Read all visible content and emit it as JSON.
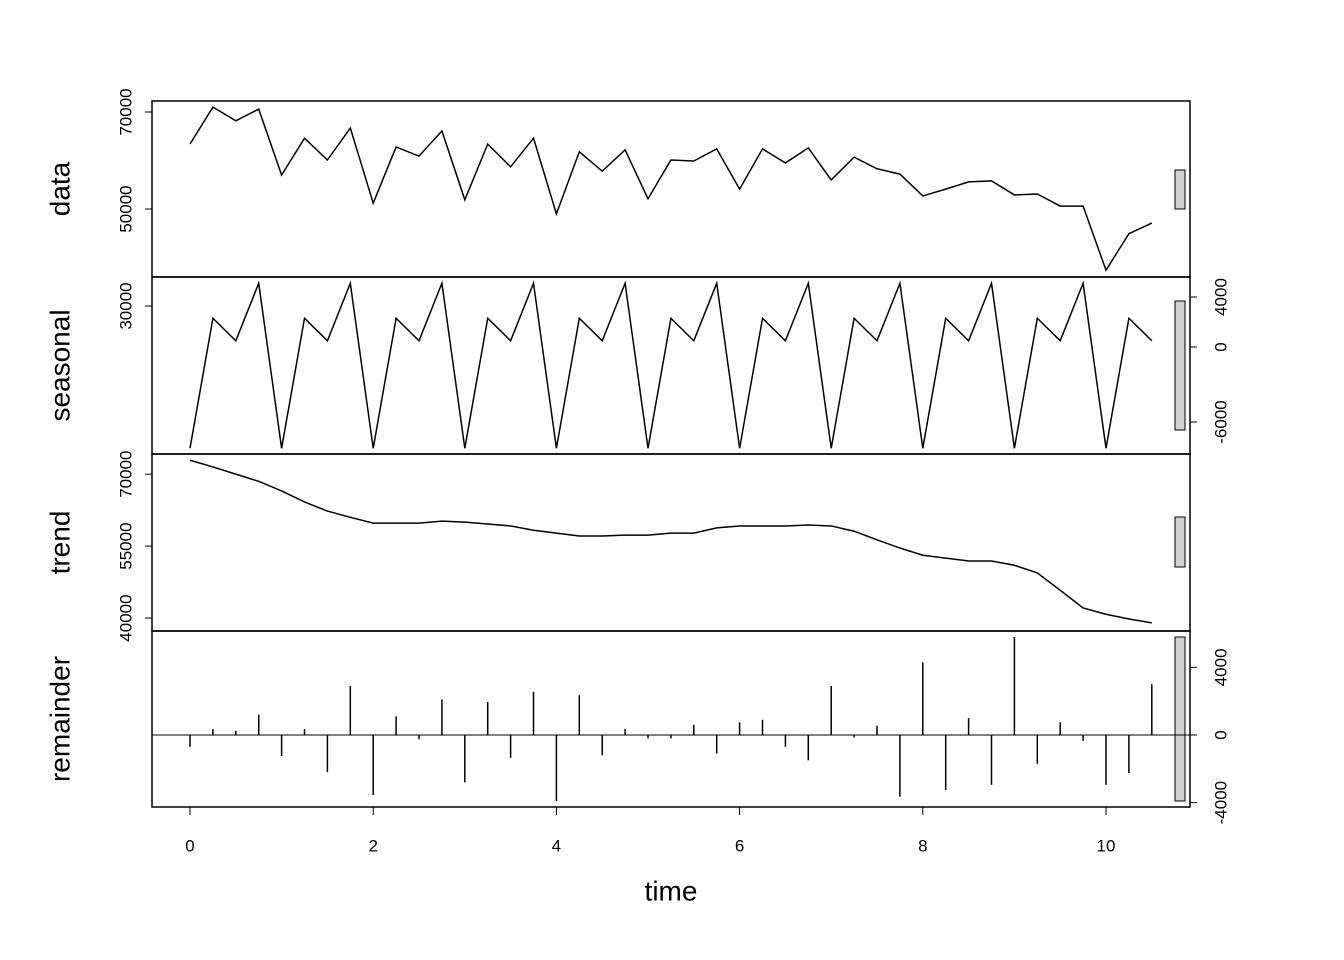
{
  "chart_data": [
    {
      "type": "line",
      "ylabel": "data",
      "yaxis_side": "left",
      "color": "#000000",
      "x": [
        0,
        0.25,
        0.5,
        0.75,
        1,
        1.25,
        1.5,
        1.75,
        2,
        2.25,
        2.5,
        2.75,
        3,
        3.25,
        3.5,
        3.75,
        4,
        4.25,
        4.5,
        4.75,
        5,
        5.25,
        5.5,
        5.75,
        6,
        6.25,
        6.5,
        6.75,
        7,
        7.25,
        7.5,
        7.75,
        8,
        8.25,
        8.5,
        8.75,
        9,
        9.25,
        9.5,
        9.75,
        10,
        10.25,
        10.5
      ],
      "values": [
        63400,
        71000,
        68200,
        70600,
        57000,
        64600,
        60100,
        66700,
        51200,
        62800,
        60900,
        66100,
        51900,
        63400,
        58700,
        64600,
        49000,
        61800,
        57800,
        62200,
        52100,
        60100,
        59900,
        62400,
        54100,
        62400,
        59500,
        62600,
        56000,
        60700,
        58300,
        57200,
        52700,
        54100,
        55600,
        55800,
        52900,
        53100,
        50600,
        50600,
        37400,
        44900,
        47100
      ],
      "xlim": [
        -0.415,
        10.917
      ],
      "ylim": [
        35980,
        72270
      ],
      "yticks": [
        30000,
        50000,
        70000
      ]
    },
    {
      "type": "line",
      "ylabel": "seasonal",
      "yaxis_side": "right",
      "color": "#000000",
      "x": [
        0,
        0.25,
        0.5,
        0.75,
        1,
        1.25,
        1.5,
        1.75,
        2,
        2.25,
        2.5,
        2.75,
        3,
        3.25,
        3.5,
        3.75,
        4,
        4.25,
        4.5,
        4.75,
        5,
        5.25,
        5.5,
        5.75,
        6,
        6.25,
        6.5,
        6.75,
        7,
        7.25,
        7.5,
        7.75,
        8,
        8.25,
        8.5,
        8.75,
        9,
        9.25,
        9.5,
        9.75,
        10,
        10.25,
        10.5
      ],
      "values": [
        -8100,
        2300,
        500,
        5100,
        -8100,
        2300,
        500,
        5100,
        -8100,
        2300,
        500,
        5100,
        -8100,
        2300,
        500,
        5100,
        -8100,
        2300,
        500,
        5100,
        -8100,
        2300,
        500,
        5100,
        -8100,
        2300,
        500,
        5100,
        -8100,
        2300,
        500,
        5100,
        -8100,
        2300,
        500,
        5100,
        -8100,
        2300,
        500,
        5100,
        -8100,
        2300,
        500
      ],
      "xlim": [
        -0.415,
        10.917
      ],
      "ylim": [
        -8560,
        5600
      ],
      "yticks": [
        -6000,
        0,
        4000
      ]
    },
    {
      "type": "line",
      "ylabel": "trend",
      "yaxis_side": "left",
      "color": "#000000",
      "x": [
        0,
        0.25,
        0.5,
        0.75,
        1,
        1.25,
        1.5,
        1.75,
        2,
        2.25,
        2.5,
        2.75,
        3,
        3.25,
        3.5,
        3.75,
        4,
        4.25,
        4.5,
        4.75,
        5,
        5.25,
        5.5,
        5.75,
        6,
        6.25,
        6.5,
        6.75,
        7,
        7.25,
        7.5,
        7.75,
        8,
        8.25,
        8.5,
        8.75,
        9,
        9.25,
        9.5,
        9.75,
        10,
        10.25,
        10.5
      ],
      "values": [
        72900,
        71500,
        70000,
        68500,
        66500,
        64200,
        62300,
        61000,
        59800,
        59800,
        59800,
        60200,
        60000,
        59600,
        59200,
        58300,
        57700,
        57100,
        57100,
        57300,
        57300,
        57700,
        57700,
        58800,
        59200,
        59200,
        59200,
        59400,
        59200,
        58100,
        56300,
        54600,
        53100,
        52500,
        51900,
        51900,
        51000,
        49400,
        45800,
        42100,
        40800,
        39800,
        39000
      ],
      "xlim": [
        -0.415,
        10.917
      ],
      "ylim": [
        37300,
        74200
      ],
      "yticks": [
        40000,
        55000,
        70000
      ]
    },
    {
      "type": "bar",
      "ylabel": "remainder",
      "yaxis_side": "right",
      "color": "#000000",
      "xlabel": "time",
      "x": [
        0,
        0.25,
        0.5,
        0.75,
        1,
        1.25,
        1.5,
        1.75,
        2,
        2.25,
        2.5,
        2.75,
        3,
        3.25,
        3.5,
        3.75,
        4,
        4.25,
        4.5,
        4.75,
        5,
        5.25,
        5.5,
        5.75,
        6,
        6.25,
        6.5,
        6.75,
        7,
        7.25,
        7.5,
        7.75,
        8,
        8.25,
        8.5,
        8.75,
        9,
        9.25,
        9.5,
        9.75,
        10,
        10.25,
        10.5
      ],
      "values": [
        -700,
        350,
        250,
        1200,
        -1250,
        350,
        -2200,
        2900,
        -3550,
        1100,
        -250,
        2100,
        -2800,
        1950,
        -1350,
        2550,
        -3900,
        2350,
        -1200,
        350,
        -200,
        -200,
        600,
        -1100,
        750,
        900,
        -700,
        -1500,
        2900,
        -150,
        550,
        -3650,
        4300,
        -3250,
        1000,
        -2950,
        5800,
        -1700,
        750,
        -350,
        -2950,
        -2250,
        3000
      ],
      "xlim": [
        -0.415,
        10.917
      ],
      "ylim": [
        -4260,
        6150
      ],
      "yticks": [
        -4000,
        0,
        4000
      ],
      "xticks": [
        0,
        2,
        4,
        6,
        8,
        10
      ]
    }
  ]
}
